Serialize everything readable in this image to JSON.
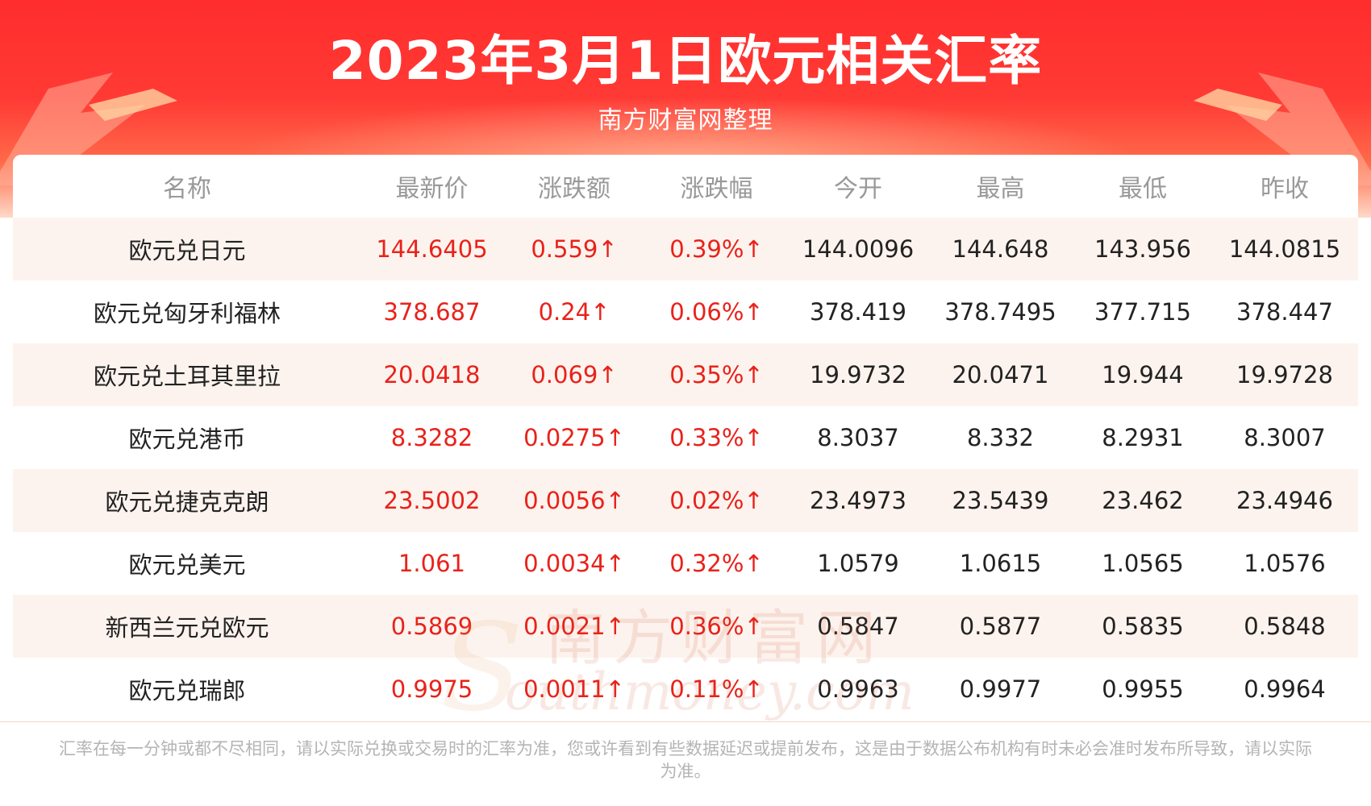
{
  "header": {
    "title": "2023年3月1日欧元相关汇率",
    "subtitle": "南方财富网整理"
  },
  "table": {
    "columns": [
      "名称",
      "最新价",
      "涨跌额",
      "涨跌幅",
      "今开",
      "最高",
      "最低",
      "昨收"
    ],
    "rows": [
      [
        "欧元兑日元",
        "144.6405",
        "0.559↑",
        "0.39%↑",
        "144.0096",
        "144.648",
        "143.956",
        "144.0815"
      ],
      [
        "欧元兑匈牙利福林",
        "378.687",
        "0.24↑",
        "0.06%↑",
        "378.419",
        "378.7495",
        "377.715",
        "378.447"
      ],
      [
        "欧元兑土耳其里拉",
        "20.0418",
        "0.069↑",
        "0.35%↑",
        "19.9732",
        "20.0471",
        "19.944",
        "19.9728"
      ],
      [
        "欧元兑港币",
        "8.3282",
        "0.0275↑",
        "0.33%↑",
        "8.3037",
        "8.332",
        "8.2931",
        "8.3007"
      ],
      [
        "欧元兑捷克克朗",
        "23.5002",
        "0.0056↑",
        "0.02%↑",
        "23.4973",
        "23.5439",
        "23.462",
        "23.4946"
      ],
      [
        "欧元兑美元",
        "1.061",
        "0.0034↑",
        "0.32%↑",
        "1.0579",
        "1.0615",
        "1.0565",
        "1.0576"
      ],
      [
        "新西兰元兑欧元",
        "0.5869",
        "0.0021↑",
        "0.36%↑",
        "0.5847",
        "0.5877",
        "0.5835",
        "0.5848"
      ],
      [
        "欧元兑瑞郎",
        "0.9975",
        "0.0011↑",
        "0.11%↑",
        "0.9963",
        "0.9977",
        "0.9955",
        "0.9964"
      ]
    ]
  },
  "watermark": {
    "cn": "南方财富网",
    "en": "outhmoney.com",
    "s": "S"
  },
  "footer": {
    "note": "汇率在每一分钟或都不尽相同，请以实际兑换或交易时的汇率为准，您或许看到有些数据延迟或提前发布，这是由于数据公布机构有时未必会准时发布所导致，请以实际为准。"
  },
  "colors": {
    "header_red": "#ff2d2d",
    "up_red": "#e8221a",
    "stripe": "#fdf3ee",
    "header_text": "#999999",
    "footer_text": "#b4b4b4"
  }
}
